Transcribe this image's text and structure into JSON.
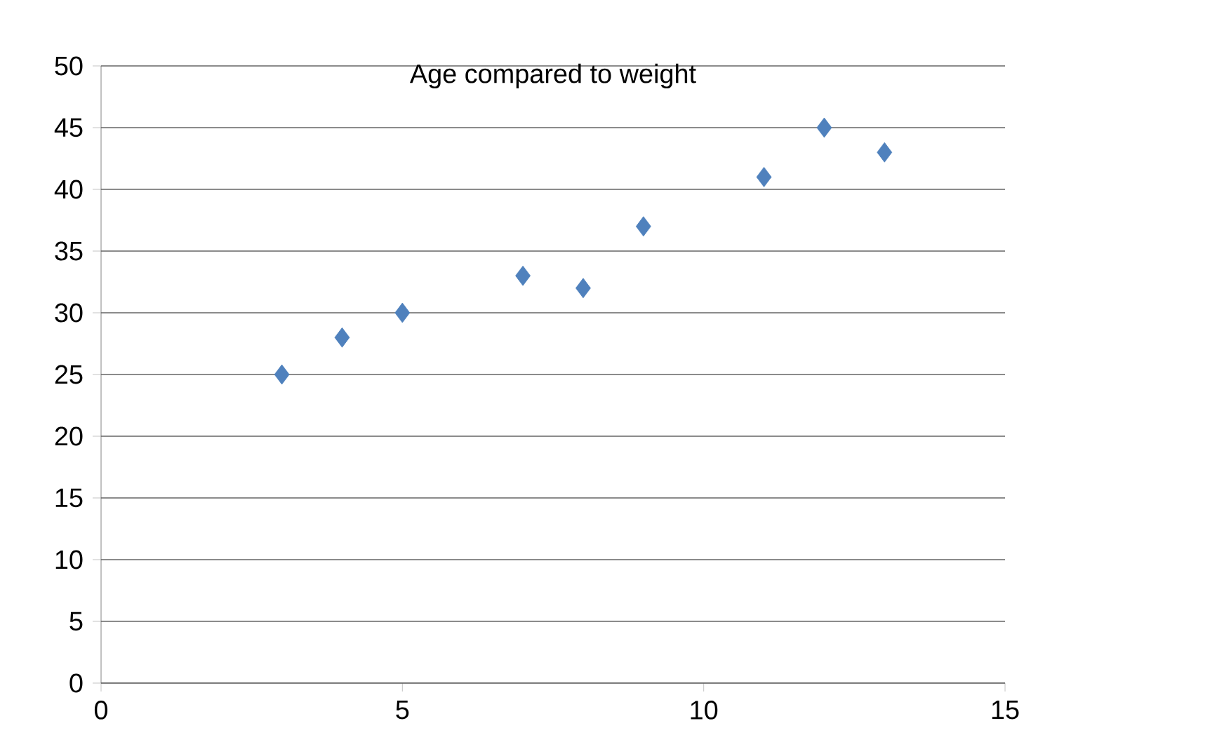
{
  "chart_data": {
    "type": "scatter",
    "title": "Age compared to weight",
    "x": [
      3,
      4,
      5,
      7,
      8,
      9,
      11,
      12,
      13
    ],
    "values": [
      25,
      28,
      30,
      33,
      32,
      37,
      41,
      45,
      43
    ],
    "color": "#4f81bd",
    "marker": "diamond",
    "grid": "y",
    "xlim": [
      0,
      15
    ],
    "xticks": [
      0,
      5,
      10,
      15
    ],
    "ylim": [
      0,
      50
    ],
    "yticks": [
      0,
      5,
      10,
      15,
      20,
      25,
      30,
      35,
      40,
      45,
      50
    ]
  }
}
